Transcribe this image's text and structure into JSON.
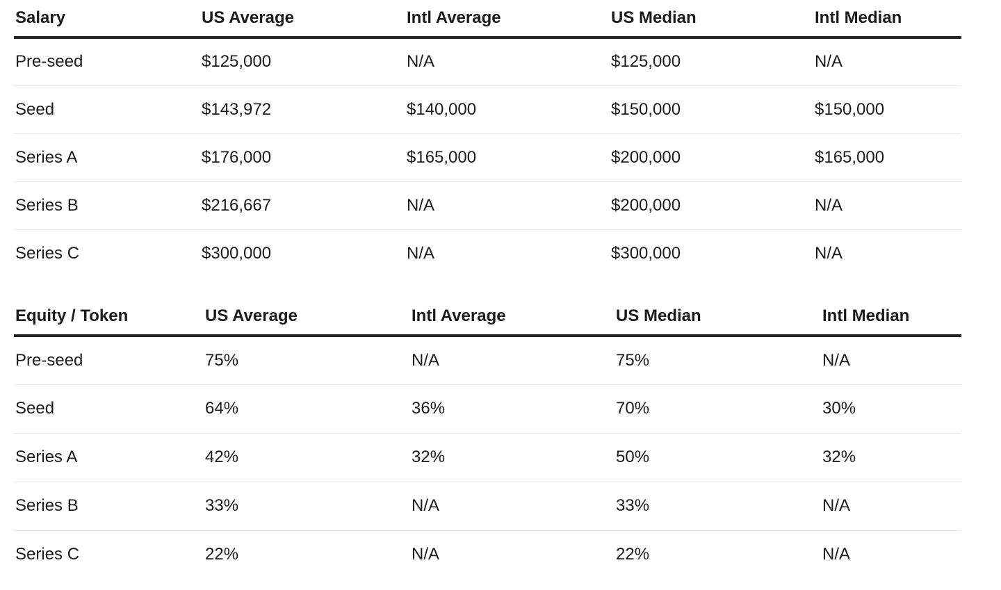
{
  "colors": {
    "text": "#1c1c1c",
    "header_rule": "#262626",
    "row_rule": "#e8e8e8",
    "background": "#ffffff"
  },
  "chart_data": [
    {
      "type": "table",
      "title": "Salary",
      "columns": [
        "Salary",
        "US Average",
        "Intl Average",
        "US Median",
        "Intl Median"
      ],
      "rows": [
        [
          "Pre-seed",
          "$125,000",
          "N/A",
          "$125,000",
          "N/A"
        ],
        [
          "Seed",
          "$143,972",
          "$140,000",
          "$150,000",
          "$150,000"
        ],
        [
          "Series A",
          "$176,000",
          "$165,000",
          "$200,000",
          "$165,000"
        ],
        [
          "Series B",
          "$216,667",
          "N/A",
          "$200,000",
          "N/A"
        ],
        [
          "Series C",
          "$300,000",
          "N/A",
          "$300,000",
          "N/A"
        ]
      ]
    },
    {
      "type": "table",
      "title": "Equity / Token",
      "columns": [
        "Equity / Token",
        "US Average",
        "Intl Average",
        "US Median",
        "Intl Median"
      ],
      "rows": [
        [
          "Pre-seed",
          "75%",
          "N/A",
          "75%",
          "N/A"
        ],
        [
          "Seed",
          "64%",
          "36%",
          "70%",
          "30%"
        ],
        [
          "Series A",
          "42%",
          "32%",
          "50%",
          "32%"
        ],
        [
          "Series B",
          "33%",
          "N/A",
          "33%",
          "N/A"
        ],
        [
          "Series C",
          "22%",
          "N/A",
          "22%",
          "N/A"
        ]
      ]
    }
  ]
}
